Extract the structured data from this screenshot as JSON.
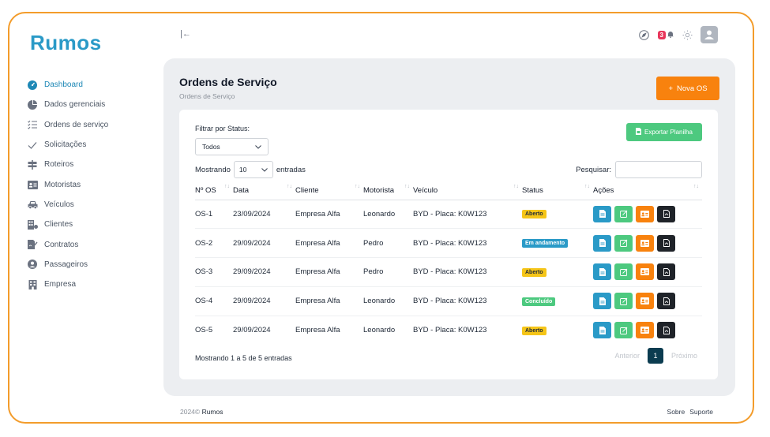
{
  "app": {
    "logo_text": "Rumos"
  },
  "colors": {
    "accent": "#1e88b6",
    "primary_orange": "#f8820e",
    "success": "#4dc97f",
    "frame_border": "#f39c2b",
    "badge_red": "#e8355a"
  },
  "sidebar": {
    "items": [
      {
        "label": "Dashboard",
        "icon": "dashboard-icon",
        "active": true
      },
      {
        "label": "Dados gerenciais",
        "icon": "pie-chart-icon"
      },
      {
        "label": "Ordens de serviço",
        "icon": "list-check-icon"
      },
      {
        "label": "Solicitações",
        "icon": "check-icon"
      },
      {
        "label": "Roteiros",
        "icon": "signpost-icon"
      },
      {
        "label": "Motoristas",
        "icon": "id-card-icon"
      },
      {
        "label": "Veículos",
        "icon": "car-icon"
      },
      {
        "label": "Clientes",
        "icon": "building-icon"
      },
      {
        "label": "Contratos",
        "icon": "contract-icon"
      },
      {
        "label": "Passageiros",
        "icon": "user-circle-icon"
      },
      {
        "label": "Empresa",
        "icon": "office-icon"
      }
    ]
  },
  "topbar": {
    "collapse_glyph": "|←",
    "notification_count": "3"
  },
  "page": {
    "title": "Ordens de Serviço",
    "breadcrumb": "Ordens de Serviço",
    "new_button": "Nova OS",
    "new_button_glyph": "+"
  },
  "filters": {
    "status_label": "Filtrar por Status:",
    "status_value": "Todos",
    "export_button": "Exportar Planilha"
  },
  "table_controls": {
    "show_label": "Mostrando",
    "length_value": "10",
    "entries_label": "entradas",
    "search_label": "Pesquisar:",
    "search_value": ""
  },
  "table": {
    "headers": [
      "Nº OS",
      "Data",
      "Cliente",
      "Motorista",
      "Veículo",
      "Status",
      "Ações"
    ],
    "rows": [
      {
        "os": "OS-1",
        "data": "23/09/2024",
        "cliente": "Empresa Alfa",
        "motorista": "Leonardo",
        "veiculo": "BYD - Placa: K0W123",
        "status": "Aberto",
        "status_color": "#f5c518",
        "status_text_color": "#1f2937"
      },
      {
        "os": "OS-2",
        "data": "29/09/2024",
        "cliente": "Empresa Alfa",
        "motorista": "Pedro",
        "veiculo": "BYD - Placa: K0W123",
        "status": "Em andamento",
        "status_color": "#2a9ac7",
        "status_text_color": "#ffffff"
      },
      {
        "os": "OS-3",
        "data": "29/09/2024",
        "cliente": "Empresa Alfa",
        "motorista": "Pedro",
        "veiculo": "BYD - Placa: K0W123",
        "status": "Aberto",
        "status_color": "#f5c518",
        "status_text_color": "#1f2937"
      },
      {
        "os": "OS-4",
        "data": "29/09/2024",
        "cliente": "Empresa Alfa",
        "motorista": "Leonardo",
        "veiculo": "BYD - Placa: K0W123",
        "status": "Concluído",
        "status_color": "#4dc97f",
        "status_text_color": "#ffffff"
      },
      {
        "os": "OS-5",
        "data": "29/09/2024",
        "cliente": "Empresa Alfa",
        "motorista": "Leonardo",
        "veiculo": "BYD - Placa: K0W123",
        "status": "Aberto",
        "status_color": "#f5c518",
        "status_text_color": "#1f2937"
      }
    ],
    "actions": [
      {
        "name": "view-button",
        "icon": "file-icon",
        "color": "#2a9ac7"
      },
      {
        "name": "edit-button",
        "icon": "edit-icon",
        "color": "#4dc97f"
      },
      {
        "name": "card-button",
        "icon": "id-card-icon",
        "color": "#f8820e"
      },
      {
        "name": "pdf-button",
        "icon": "pdf-icon",
        "color": "#1f2329"
      }
    ]
  },
  "pagination": {
    "info": "Mostrando 1 a 5 de 5 entradas",
    "previous": "Anterior",
    "current": "1",
    "next": "Próximo"
  },
  "footer": {
    "year": "2024©",
    "brand": "Rumos",
    "links": [
      "Sobre",
      "Suporte"
    ]
  }
}
